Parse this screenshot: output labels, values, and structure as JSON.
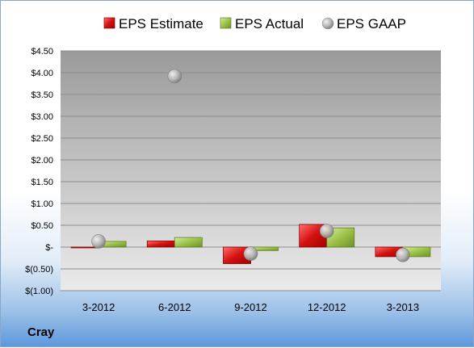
{
  "company": "Cray",
  "chart_data": {
    "type": "bar",
    "categories": [
      "3-2012",
      "6-2012",
      "9-2012",
      "12-2012",
      "3-2013"
    ],
    "series": [
      {
        "name": "EPS Estimate",
        "type": "bar",
        "color": "#cc0000",
        "values": [
          0.0,
          0.14,
          -0.38,
          0.52,
          -0.22
        ]
      },
      {
        "name": "EPS Actual",
        "type": "bar",
        "color": "#8db33a",
        "values": [
          0.13,
          0.22,
          -0.08,
          0.44,
          -0.22
        ]
      },
      {
        "name": "EPS GAAP",
        "type": "scatter",
        "color": "#b0b0b0",
        "values": [
          0.13,
          3.92,
          -0.15,
          0.37,
          -0.18
        ]
      }
    ],
    "ylim": [
      -1.0,
      4.5
    ],
    "yticks": [
      4.5,
      4.0,
      3.5,
      3.0,
      2.5,
      2.0,
      1.5,
      1.0,
      0.5,
      0,
      -0.5,
      -1.0
    ],
    "ytick_labels": [
      "$4.50",
      "$4.00",
      "$3.50",
      "$3.00",
      "$2.50",
      "$2.00",
      "$1.50",
      "$1.00",
      "$0.50",
      "$-",
      "$(0.50)",
      "$(1.00)"
    ],
    "grid": true,
    "legend": "top"
  }
}
